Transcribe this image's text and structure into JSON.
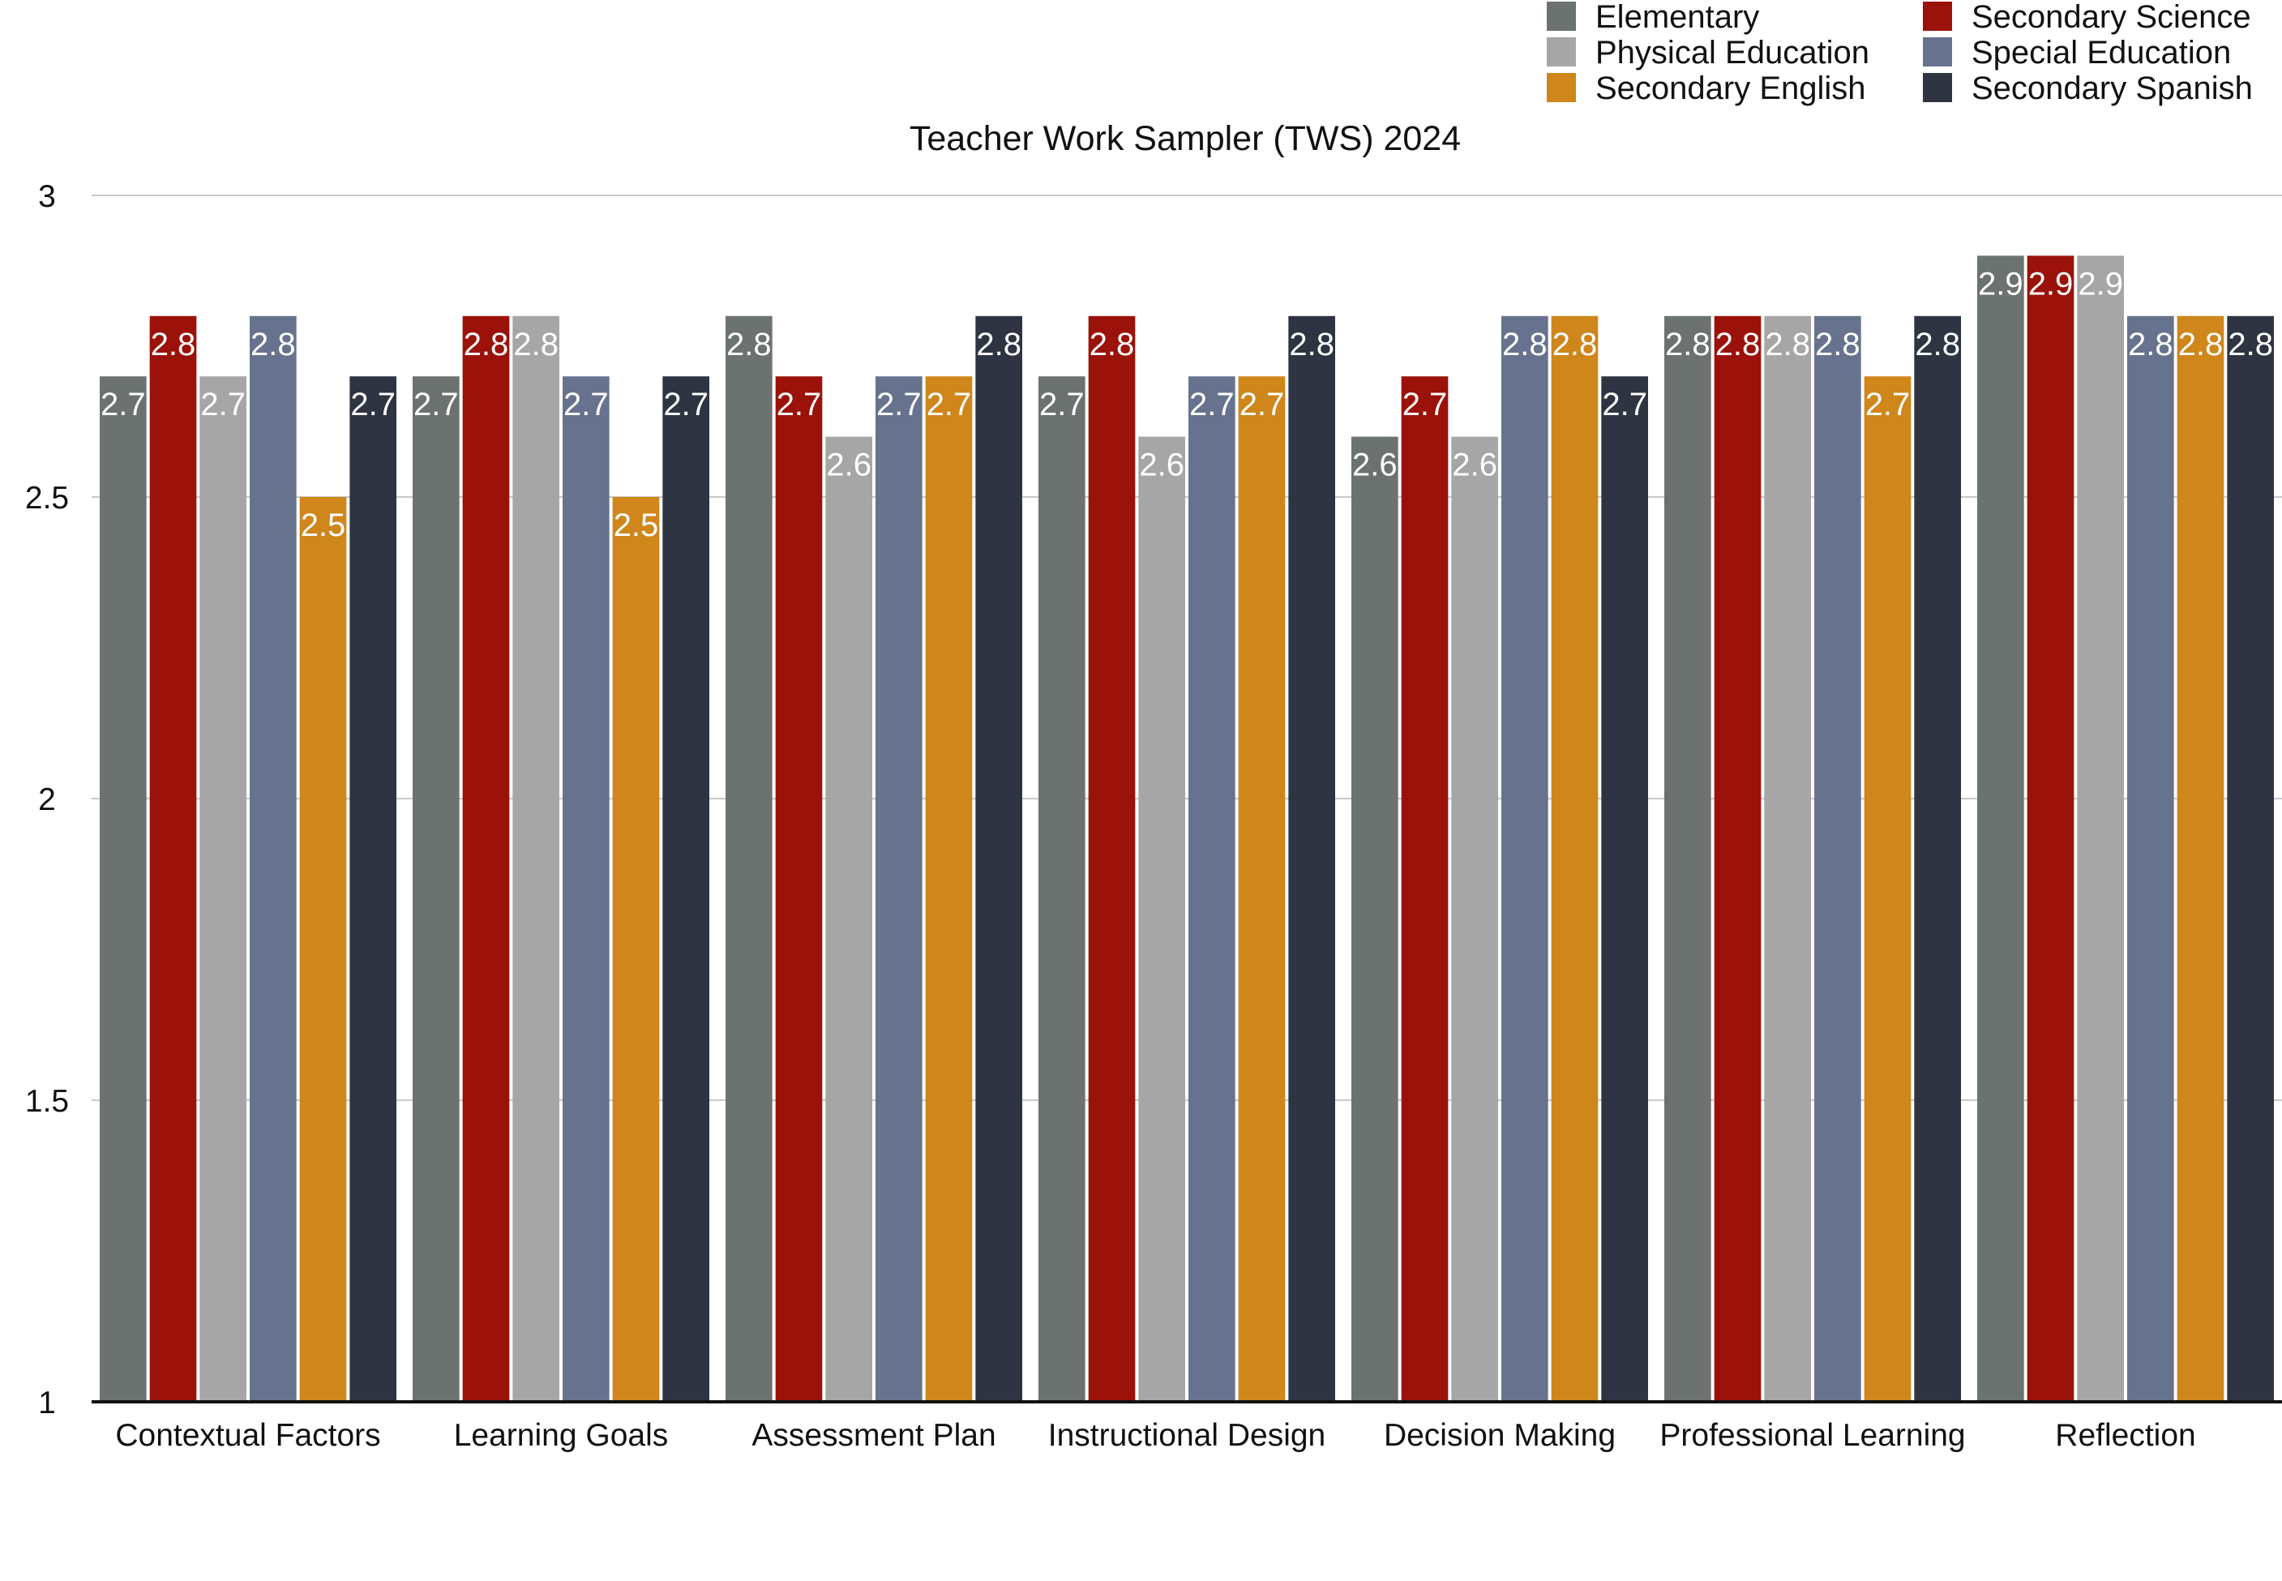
{
  "chart_data": {
    "type": "bar",
    "title": "Teacher Work Sampler (TWS) 2024",
    "xlabel": "",
    "ylabel": "",
    "ylim": [
      1,
      3
    ],
    "yticks": [
      "1",
      "1.5",
      "2",
      "2.5",
      "3"
    ],
    "grid": true,
    "legend_position": "top-right",
    "categories": [
      "Contextual Factors",
      "Learning Goals",
      "Assessment Plan",
      "Instructional Design",
      "Decision Making",
      "Professional Learning",
      "Reflection"
    ],
    "series": [
      {
        "name": "Elementary",
        "color": "#6c7270",
        "values": [
          2.7,
          2.7,
          2.8,
          2.7,
          2.6,
          2.8,
          2.9
        ]
      },
      {
        "name": "Secondary Science",
        "color": "#9b120a",
        "values": [
          2.8,
          2.8,
          2.7,
          2.8,
          2.7,
          2.8,
          2.9
        ]
      },
      {
        "name": "Physical Education",
        "color": "#a6a6a6",
        "values": [
          2.7,
          2.8,
          2.6,
          2.6,
          2.6,
          2.8,
          2.9
        ]
      },
      {
        "name": "Special Education",
        "color": "#67738e",
        "values": [
          2.8,
          2.7,
          2.7,
          2.7,
          2.8,
          2.8,
          2.8
        ]
      },
      {
        "name": "Secondary English",
        "color": "#cf861b",
        "values": [
          2.5,
          2.5,
          2.7,
          2.7,
          2.8,
          2.7,
          2.8
        ]
      },
      {
        "name": "Secondary Spanish",
        "color": "#2e3441",
        "values": [
          2.7,
          2.7,
          2.8,
          2.8,
          2.7,
          2.8,
          2.8
        ]
      }
    ],
    "legend_order": [
      0,
      1,
      2,
      3,
      4,
      5
    ]
  }
}
